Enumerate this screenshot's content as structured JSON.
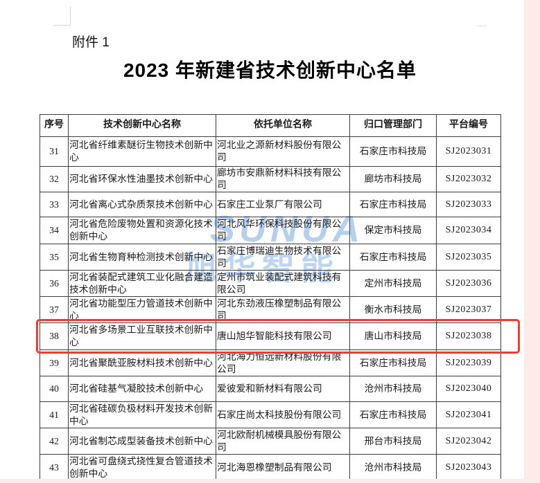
{
  "page": {
    "attachment_label": "附件 1",
    "title": "2023 年新建省技术创新中心名单"
  },
  "watermark": {
    "line1": "SUNUA",
    "line2": "旭华智能",
    "color": "#b4cfef"
  },
  "highlight": {
    "highlighted_serial": "38",
    "border_color": "#f23b2e"
  },
  "colors": {
    "edge_strip": "#fcebe8",
    "table_border": "#3c3c3c",
    "text": "#1a1a1a"
  },
  "table": {
    "headers": [
      "序号",
      "技术创新中心名称",
      "依托单位名称",
      "归口管理部门",
      "平台编号"
    ],
    "rows": [
      [
        "31",
        "河北省纤维素醚衍生物技术创新中心",
        "河北业之源新材料股份有限公司",
        "石家庄市科技局",
        "SJ2023031"
      ],
      [
        "32",
        "河北省环保水性油墨技术创新中心",
        "廊坊市安鼎新材料科技有限公司",
        "廊坊市科技局",
        "SJ2023032"
      ],
      [
        "33",
        "河北省离心式杂质泵技术创新中心",
        "石家庄工业泵厂有限公司",
        "石家庄市科技局",
        "SJ2023033"
      ],
      [
        "34",
        "河北省危险废物处置和资源化技术创新中心",
        "河北风华环保科技股份有限公司",
        "保定市科技局",
        "SJ2023034"
      ],
      [
        "35",
        "河北省生物育种检测技术创新中心",
        "石家庄博瑞迪生物技术有限公司",
        "石家庄市科技局",
        "SJ2023035"
      ],
      [
        "36",
        "河北省装配式建筑工业化融合建造技术创新中心",
        "定州市筑业装配式建筑科技有限公司",
        "定州市科技局",
        "SJ2023036"
      ],
      [
        "37",
        "河北省功能型压力管道技术创新中心",
        "河北东劲液压橡塑制品有限公司",
        "衡水市科技局",
        "SJ2023037"
      ],
      [
        "38",
        "河北省多场景工业互联技术创新中心",
        "唐山旭华智能科技有限公司",
        "唐山市科技局",
        "SJ2023038"
      ],
      [
        "39",
        "河北省聚酰亚胺材料技术创新中心",
        "河北海力恒远新材料股份有限公司",
        "石家庄市科技局",
        "SJ2023039"
      ],
      [
        "40",
        "河北省硅基气凝胶技术创新中心",
        "爱彼爱和新材料有限公司",
        "沧州市科技局",
        "SJ2023040"
      ],
      [
        "41",
        "河北省硅碳负极材料开发技术创新中心",
        "石家庄尚太科技股份有限公司",
        "石家庄市科技局",
        "SJ2023041"
      ],
      [
        "42",
        "河北省制芯成型装备技术创新中心",
        "河北欧耐机械模具股份有限公司",
        "邢台市科技局",
        "SJ2023042"
      ],
      [
        "43",
        "河北省可盘绕式挠性复合管道技术创新中心",
        "河北海恩橡塑制品有限公司",
        "沧州市科技局",
        "SJ2023043"
      ]
    ]
  }
}
